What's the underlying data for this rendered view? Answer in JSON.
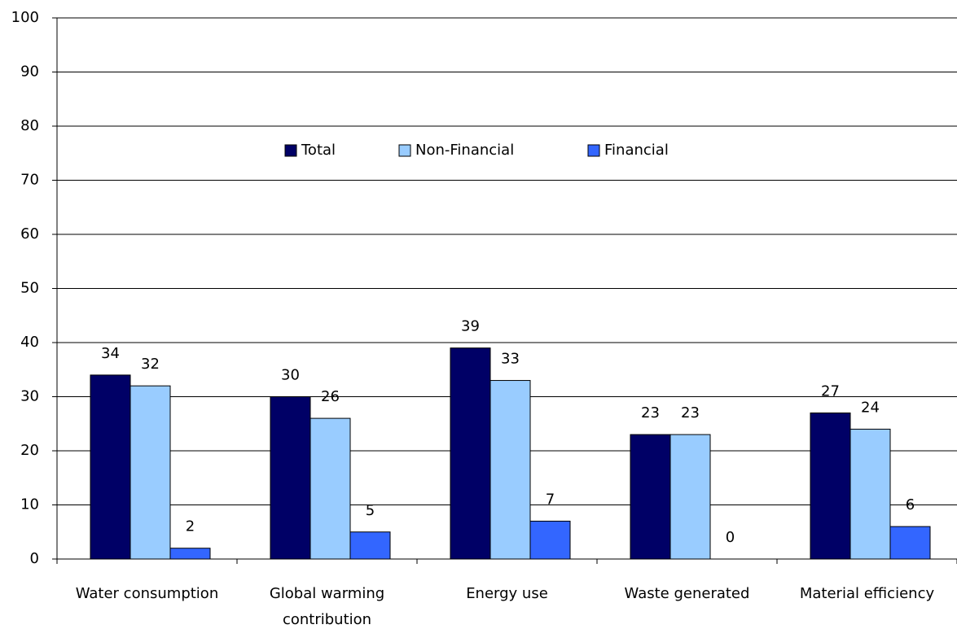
{
  "chart_data": {
    "type": "bar",
    "categories": [
      "Water consumption",
      "Global warming contribution",
      "Energy use",
      "Waste generated",
      "Material efficiency"
    ],
    "series": [
      {
        "name": "Total",
        "color": "#000066",
        "values": [
          34,
          30,
          39,
          23,
          27
        ]
      },
      {
        "name": "Non-Financial",
        "color": "#99ccff",
        "values": [
          32,
          26,
          33,
          23,
          24
        ]
      },
      {
        "name": "Financial",
        "color": "#3366ff",
        "values": [
          2,
          5,
          7,
          0,
          6
        ]
      }
    ],
    "ylim": [
      0,
      100
    ],
    "yticks": [
      0,
      10,
      20,
      30,
      40,
      50,
      60,
      70,
      80,
      90,
      100
    ],
    "grid": true,
    "legend": "top"
  }
}
